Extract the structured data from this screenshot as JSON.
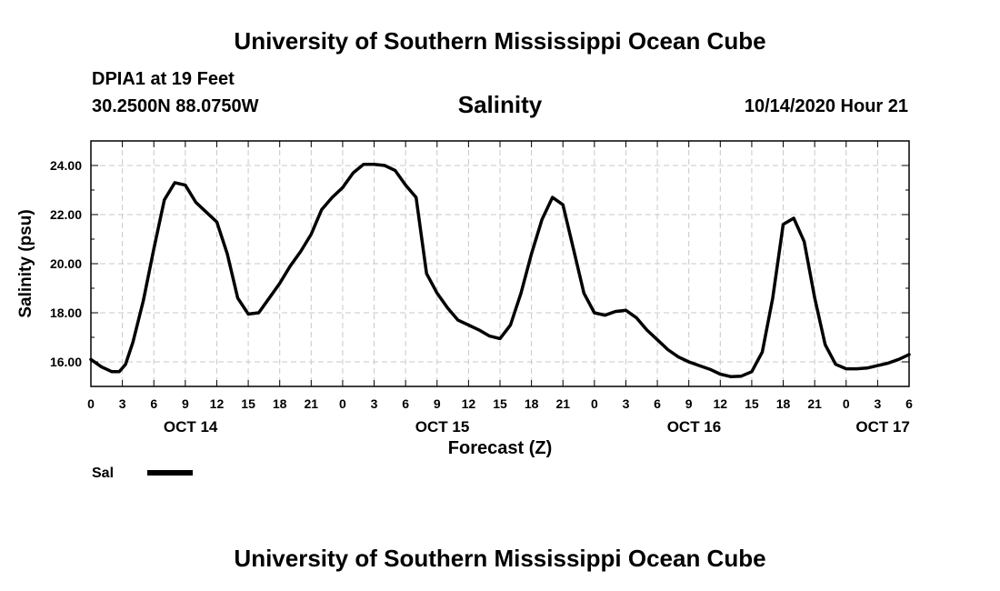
{
  "header": {
    "title": "University of Southern Mississippi Ocean Cube",
    "station": "DPIA1 at 19 Feet",
    "coordinates": "30.2500N 88.0750W",
    "variable": "Salinity",
    "datetime": "10/14/2020 Hour 21"
  },
  "footer": {
    "title": "University of Southern Mississippi Ocean Cube"
  },
  "colors": {
    "line": "#000000",
    "grid": "#c8c8c8",
    "background": "#ffffff"
  },
  "chart_data": {
    "type": "line",
    "title": "Salinity",
    "xlabel": "Forecast (Z)",
    "ylabel": "Salinity (psu)",
    "xlim": [
      0,
      78
    ],
    "ylim": [
      15,
      25
    ],
    "grid": true,
    "x_tick_values": [
      0,
      3,
      6,
      9,
      12,
      15,
      18,
      21,
      24,
      27,
      30,
      33,
      36,
      39,
      42,
      45,
      48,
      51,
      54,
      57,
      60,
      63,
      66,
      69,
      72,
      75,
      78
    ],
    "x_tick_labels": [
      "0",
      "3",
      "6",
      "9",
      "12",
      "15",
      "18",
      "21",
      "0",
      "3",
      "6",
      "9",
      "12",
      "15",
      "18",
      "21",
      "0",
      "3",
      "6",
      "9",
      "12",
      "15",
      "18",
      "21",
      "0",
      "3",
      "6"
    ],
    "day_labels": [
      {
        "x": 9.5,
        "label": "OCT 14"
      },
      {
        "x": 33.5,
        "label": "OCT 15"
      },
      {
        "x": 57.5,
        "label": "OCT 16"
      },
      {
        "x": 75.5,
        "label": "OCT 17"
      }
    ],
    "y_tick_values": [
      16,
      18,
      20,
      22,
      24
    ],
    "y_tick_labels": [
      "16.00",
      "18.00",
      "20.00",
      "22.00",
      "24.00"
    ],
    "legend": {
      "placement": "bottom-left",
      "entries": [
        "Sal"
      ]
    },
    "series": [
      {
        "name": "Sal",
        "x": [
          0,
          1,
          2,
          2.7,
          3.3,
          4,
          5,
          6,
          6.5,
          7,
          8,
          9,
          10,
          11,
          12,
          13,
          14,
          15,
          16,
          17,
          18,
          19,
          20,
          21,
          22,
          23,
          24,
          25,
          26,
          27,
          28,
          29,
          30,
          31,
          32,
          33,
          34,
          35,
          36,
          37,
          38,
          39,
          40,
          41,
          42,
          43,
          44,
          45,
          46,
          47,
          48,
          49,
          50,
          51,
          52,
          53,
          54,
          55,
          56,
          57,
          58,
          59,
          60,
          61,
          62,
          63,
          64,
          65,
          66,
          67,
          68,
          69,
          70,
          71,
          72,
          73,
          74,
          75,
          76,
          77,
          78
        ],
        "values": [
          16.1,
          15.8,
          15.6,
          15.6,
          15.9,
          16.8,
          18.5,
          20.6,
          21.6,
          22.6,
          23.3,
          23.2,
          22.5,
          22.1,
          21.7,
          20.4,
          18.6,
          17.95,
          18.0,
          18.6,
          19.2,
          19.9,
          20.5,
          21.2,
          22.2,
          22.7,
          23.1,
          23.7,
          24.05,
          24.05,
          24.0,
          23.8,
          23.2,
          22.7,
          19.6,
          18.8,
          18.2,
          17.7,
          17.5,
          17.3,
          17.05,
          16.95,
          17.5,
          18.8,
          20.4,
          21.8,
          22.7,
          22.4,
          20.6,
          18.8,
          18.0,
          17.9,
          18.05,
          18.1,
          17.8,
          17.3,
          16.9,
          16.5,
          16.2,
          16.0,
          15.85,
          15.7,
          15.5,
          15.4,
          15.42,
          15.6,
          16.4,
          18.6,
          21.6,
          21.85,
          20.9,
          18.6,
          16.7,
          15.9,
          15.72,
          15.72,
          15.75,
          15.85,
          15.95,
          16.1,
          16.3
        ]
      }
    ]
  }
}
